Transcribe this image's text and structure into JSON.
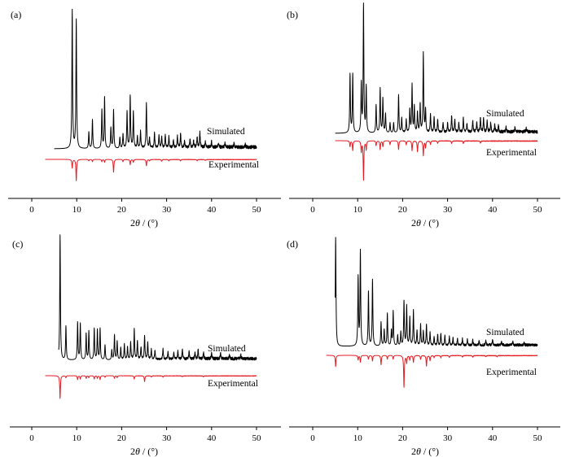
{
  "figure": {
    "panels": [
      "(a)",
      "(b)",
      "(c)",
      "(d)"
    ],
    "colors": {
      "simulated": "#000000",
      "experimental": "#e41c23",
      "axis": "#000000"
    }
  },
  "chart_data": [
    {
      "type": "line",
      "panel_label": "(a)",
      "xlabel_symbol": "2",
      "xlabel_var": "θ",
      "xlabel_unit": " / (°)",
      "xlim": [
        -3,
        52
      ],
      "xticks": [
        0,
        10,
        20,
        30,
        40,
        50
      ],
      "yticks_shown": false,
      "series": [
        {
          "name": "Simulated",
          "color": "#000000",
          "direction": "up",
          "x_start": 5,
          "x_end": 50,
          "baseline_noise": 0.025,
          "noise_fade_from": 20,
          "noise_fade_to": 50,
          "peaks": [
            [
              9.0,
              1.0
            ],
            [
              9.9,
              0.93
            ],
            [
              12.7,
              0.12
            ],
            [
              13.5,
              0.21
            ],
            [
              15.6,
              0.28
            ],
            [
              16.2,
              0.37
            ],
            [
              17.6,
              0.15
            ],
            [
              18.2,
              0.28
            ],
            [
              19.6,
              0.08
            ],
            [
              20.3,
              0.1
            ],
            [
              21.2,
              0.26
            ],
            [
              21.9,
              0.38
            ],
            [
              22.6,
              0.26
            ],
            [
              23.5,
              0.08
            ],
            [
              24.2,
              0.12
            ],
            [
              25.5,
              0.32
            ],
            [
              26.2,
              0.07
            ],
            [
              27.3,
              0.11
            ],
            [
              28.3,
              0.09
            ],
            [
              28.9,
              0.08
            ],
            [
              29.7,
              0.09
            ],
            [
              30.5,
              0.08
            ],
            [
              31.5,
              0.05
            ],
            [
              32.4,
              0.08
            ],
            [
              33.1,
              0.1
            ],
            [
              34.0,
              0.05
            ],
            [
              35.2,
              0.06
            ],
            [
              36.0,
              0.05
            ],
            [
              36.8,
              0.08
            ],
            [
              37.4,
              0.11
            ],
            [
              38.6,
              0.04
            ],
            [
              40.0,
              0.04
            ],
            [
              41.5,
              0.03
            ],
            [
              43.0,
              0.03
            ],
            [
              45.0,
              0.03
            ],
            [
              47.5,
              0.02
            ]
          ]
        },
        {
          "name": "Experimental",
          "color": "#e41c23",
          "direction": "down",
          "x_start": 3,
          "x_end": 50,
          "baseline_noise": 0.015,
          "noise_fade_from": 20,
          "noise_fade_to": 50,
          "peaks": [
            [
              9.0,
              0.3
            ],
            [
              9.9,
              0.75
            ],
            [
              12.7,
              0.05
            ],
            [
              13.5,
              0.08
            ],
            [
              15.6,
              0.08
            ],
            [
              16.2,
              0.1
            ],
            [
              18.2,
              0.45
            ],
            [
              20.3,
              0.08
            ],
            [
              21.9,
              0.18
            ],
            [
              22.6,
              0.1
            ],
            [
              25.5,
              0.22
            ],
            [
              26.2,
              0.05
            ],
            [
              28.9,
              0.06
            ],
            [
              30.5,
              0.05
            ],
            [
              33.1,
              0.05
            ],
            [
              36.8,
              0.04
            ],
            [
              38.6,
              0.03
            ]
          ]
        }
      ]
    },
    {
      "type": "line",
      "panel_label": "(b)",
      "xlabel_symbol": "2",
      "xlabel_var": "θ",
      "xlabel_unit": " / (°)",
      "xlim": [
        -3,
        52
      ],
      "xticks": [
        0,
        10,
        20,
        30,
        40,
        50
      ],
      "yticks_shown": false,
      "series": [
        {
          "name": "Simulated",
          "color": "#000000",
          "direction": "up",
          "x_start": 5,
          "x_end": 50,
          "baseline_noise": 0.025,
          "noise_fade_from": 20,
          "noise_fade_to": 50,
          "peaks": [
            [
              8.3,
              0.46
            ],
            [
              8.9,
              0.46
            ],
            [
              10.8,
              0.38
            ],
            [
              11.3,
              1.0
            ],
            [
              11.9,
              0.36
            ],
            [
              14.1,
              0.22
            ],
            [
              15.0,
              0.35
            ],
            [
              15.6,
              0.27
            ],
            [
              16.2,
              0.15
            ],
            [
              17.2,
              0.08
            ],
            [
              18.0,
              0.08
            ],
            [
              19.1,
              0.3
            ],
            [
              19.8,
              0.12
            ],
            [
              20.8,
              0.1
            ],
            [
              21.6,
              0.18
            ],
            [
              22.1,
              0.37
            ],
            [
              22.6,
              0.2
            ],
            [
              23.3,
              0.16
            ],
            [
              23.9,
              0.22
            ],
            [
              24.6,
              0.62
            ],
            [
              25.1,
              0.18
            ],
            [
              26.2,
              0.14
            ],
            [
              27.0,
              0.12
            ],
            [
              27.8,
              0.1
            ],
            [
              29.0,
              0.08
            ],
            [
              30.0,
              0.07
            ],
            [
              30.9,
              0.13
            ],
            [
              31.6,
              0.1
            ],
            [
              32.5,
              0.08
            ],
            [
              33.5,
              0.11
            ],
            [
              34.3,
              0.07
            ],
            [
              35.6,
              0.09
            ],
            [
              36.5,
              0.08
            ],
            [
              37.3,
              0.11
            ],
            [
              38.0,
              0.1
            ],
            [
              38.8,
              0.09
            ],
            [
              39.6,
              0.07
            ],
            [
              40.5,
              0.06
            ],
            [
              41.3,
              0.05
            ],
            [
              43.0,
              0.04
            ],
            [
              45.0,
              0.04
            ],
            [
              47.5,
              0.03
            ]
          ]
        },
        {
          "name": "Experimental",
          "color": "#e41c23",
          "direction": "down",
          "x_start": 5,
          "x_end": 50,
          "baseline_noise": 0.015,
          "noise_fade_from": 20,
          "noise_fade_to": 50,
          "peaks": [
            [
              8.3,
              0.12
            ],
            [
              8.9,
              0.2
            ],
            [
              10.8,
              0.22
            ],
            [
              11.3,
              0.8
            ],
            [
              11.9,
              0.18
            ],
            [
              14.1,
              0.1
            ],
            [
              15.0,
              0.18
            ],
            [
              15.6,
              0.12
            ],
            [
              17.2,
              0.08
            ],
            [
              19.1,
              0.18
            ],
            [
              20.8,
              0.08
            ],
            [
              22.1,
              0.2
            ],
            [
              23.3,
              0.22
            ],
            [
              24.6,
              0.3
            ],
            [
              25.1,
              0.14
            ],
            [
              26.2,
              0.07
            ],
            [
              27.8,
              0.05
            ],
            [
              30.9,
              0.05
            ],
            [
              33.5,
              0.05
            ],
            [
              37.3,
              0.04
            ]
          ]
        }
      ]
    },
    {
      "type": "line",
      "panel_label": "(c)",
      "xlabel_symbol": "2",
      "xlabel_var": "θ",
      "xlabel_unit": " / (°)",
      "xlim": [
        -3,
        52
      ],
      "xticks": [
        0,
        10,
        20,
        30,
        40,
        50
      ],
      "yticks_shown": false,
      "series": [
        {
          "name": "Simulated",
          "color": "#000000",
          "direction": "up",
          "x_start": 6,
          "x_end": 50,
          "baseline_noise": 0.025,
          "noise_fade_from": 20,
          "noise_fade_to": 50,
          "peaks": [
            [
              6.3,
              1.0
            ],
            [
              7.6,
              0.27
            ],
            [
              10.2,
              0.3
            ],
            [
              10.8,
              0.29
            ],
            [
              12.1,
              0.21
            ],
            [
              12.7,
              0.23
            ],
            [
              13.9,
              0.25
            ],
            [
              14.6,
              0.24
            ],
            [
              15.2,
              0.25
            ],
            [
              16.3,
              0.12
            ],
            [
              17.8,
              0.08
            ],
            [
              18.4,
              0.2
            ],
            [
              19.0,
              0.15
            ],
            [
              19.8,
              0.1
            ],
            [
              20.6,
              0.12
            ],
            [
              21.3,
              0.1
            ],
            [
              22.0,
              0.14
            ],
            [
              22.8,
              0.24
            ],
            [
              23.5,
              0.15
            ],
            [
              24.3,
              0.1
            ],
            [
              25.1,
              0.19
            ],
            [
              25.8,
              0.14
            ],
            [
              26.6,
              0.08
            ],
            [
              27.4,
              0.07
            ],
            [
              29.2,
              0.08
            ],
            [
              30.3,
              0.06
            ],
            [
              31.6,
              0.05
            ],
            [
              32.5,
              0.06
            ],
            [
              33.5,
              0.08
            ],
            [
              35.0,
              0.06
            ],
            [
              36.3,
              0.05
            ],
            [
              37.0,
              0.07
            ],
            [
              38.2,
              0.05
            ],
            [
              40.0,
              0.04
            ],
            [
              42.0,
              0.04
            ],
            [
              44.0,
              0.03
            ],
            [
              46.5,
              0.03
            ]
          ]
        },
        {
          "name": "Experimental",
          "color": "#e41c23",
          "direction": "down",
          "x_start": 3,
          "x_end": 50,
          "baseline_noise": 0.015,
          "noise_fade_from": 20,
          "noise_fade_to": 50,
          "peaks": [
            [
              6.3,
              0.7
            ],
            [
              7.6,
              0.06
            ],
            [
              10.2,
              0.12
            ],
            [
              10.8,
              0.1
            ],
            [
              12.1,
              0.08
            ],
            [
              12.7,
              0.06
            ],
            [
              13.9,
              0.1
            ],
            [
              14.6,
              0.08
            ],
            [
              15.2,
              0.12
            ],
            [
              16.3,
              0.05
            ],
            [
              18.4,
              0.08
            ],
            [
              19.0,
              0.06
            ],
            [
              22.8,
              0.1
            ],
            [
              25.1,
              0.18
            ],
            [
              26.6,
              0.04
            ],
            [
              29.2,
              0.04
            ],
            [
              33.5,
              0.03
            ],
            [
              38.2,
              0.03
            ]
          ]
        }
      ]
    },
    {
      "type": "line",
      "panel_label": "(d)",
      "xlabel_symbol": "2",
      "xlabel_var": "θ",
      "xlabel_unit": " / (°)",
      "xlim": [
        -3,
        52
      ],
      "xticks": [
        0,
        10,
        20,
        30,
        40,
        50
      ],
      "yticks_shown": false,
      "series": [
        {
          "name": "Simulated",
          "color": "#000000",
          "direction": "up",
          "x_start": 5,
          "x_end": 50,
          "baseline_noise": 0.025,
          "noise_fade_from": 20,
          "noise_fade_to": 50,
          "peaks": [
            [
              5.1,
              1.0
            ],
            [
              10.1,
              0.63
            ],
            [
              10.6,
              0.87
            ],
            [
              12.4,
              0.5
            ],
            [
              13.3,
              0.61
            ],
            [
              15.2,
              0.22
            ],
            [
              15.9,
              0.15
            ],
            [
              16.6,
              0.3
            ],
            [
              17.5,
              0.14
            ],
            [
              17.9,
              0.32
            ],
            [
              18.9,
              0.1
            ],
            [
              19.6,
              0.13
            ],
            [
              20.3,
              0.41
            ],
            [
              20.9,
              0.36
            ],
            [
              21.6,
              0.26
            ],
            [
              22.4,
              0.32
            ],
            [
              23.2,
              0.14
            ],
            [
              24.0,
              0.19
            ],
            [
              24.6,
              0.13
            ],
            [
              25.3,
              0.19
            ],
            [
              26.1,
              0.12
            ],
            [
              27.0,
              0.08
            ],
            [
              27.8,
              0.1
            ],
            [
              28.5,
              0.11
            ],
            [
              29.4,
              0.09
            ],
            [
              30.4,
              0.08
            ],
            [
              31.2,
              0.07
            ],
            [
              32.2,
              0.06
            ],
            [
              33.3,
              0.06
            ],
            [
              34.4,
              0.05
            ],
            [
              35.6,
              0.05
            ],
            [
              37.0,
              0.04
            ],
            [
              38.5,
              0.04
            ],
            [
              40.0,
              0.05
            ],
            [
              42.0,
              0.03
            ],
            [
              44.5,
              0.03
            ],
            [
              47.0,
              0.02
            ]
          ]
        },
        {
          "name": "Experimental",
          "color": "#e41c23",
          "direction": "down",
          "x_start": 3,
          "x_end": 50,
          "baseline_noise": 0.015,
          "noise_fade_from": 20,
          "noise_fade_to": 50,
          "peaks": [
            [
              5.1,
              0.3
            ],
            [
              10.1,
              0.12
            ],
            [
              10.6,
              0.18
            ],
            [
              12.4,
              0.1
            ],
            [
              13.3,
              0.15
            ],
            [
              15.2,
              0.25
            ],
            [
              16.6,
              0.1
            ],
            [
              17.9,
              0.1
            ],
            [
              20.3,
              0.85
            ],
            [
              20.9,
              0.2
            ],
            [
              21.6,
              0.12
            ],
            [
              22.4,
              0.18
            ],
            [
              24.0,
              0.1
            ],
            [
              25.3,
              0.28
            ],
            [
              26.1,
              0.14
            ],
            [
              27.0,
              0.06
            ],
            [
              28.5,
              0.06
            ],
            [
              30.4,
              0.05
            ],
            [
              33.3,
              0.04
            ],
            [
              35.6,
              0.04
            ],
            [
              38.5,
              0.03
            ],
            [
              41.0,
              0.03
            ]
          ]
        }
      ]
    }
  ]
}
